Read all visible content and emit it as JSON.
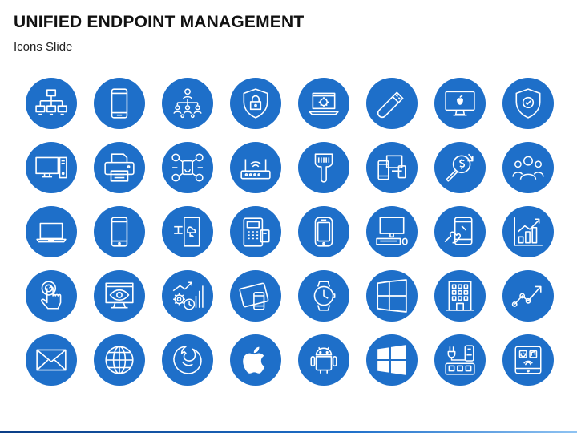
{
  "slide": {
    "title": "UNIFIED ENDPOINT MANAGEMENT",
    "subtitle": "Icons Slide"
  },
  "colors": {
    "icon_circle": "#1e6fc9",
    "icon_stroke": "#ffffff",
    "title_text": "#111111"
  },
  "icon_rows": [
    [
      "network-icon",
      "smartphone-icon",
      "org-hierarchy-icon",
      "security-shield-lock-icon",
      "laptop-settings-icon",
      "usb-drive-icon",
      "imac-apple-icon",
      "verified-shield-icon"
    ],
    [
      "desktop-computer-icon",
      "printer-icon",
      "connected-apps-icon",
      "wifi-router-icon",
      "barcode-scanner-icon",
      "multi-device-icon",
      "cost-analysis-icon",
      "team-icon"
    ],
    [
      "laptop-icon",
      "mobile-phone-icon",
      "cloud-door-icon",
      "payment-terminal-icon",
      "rugged-phone-icon",
      "workstation-icon",
      "touch-screen-icon",
      "growth-chart-icon"
    ],
    [
      "tap-finger-icon",
      "monitoring-eye-icon",
      "performance-gears-icon",
      "tablet-devices-icon",
      "smartwatch-icon",
      "windows-frame-icon",
      "office-building-icon",
      "trend-line-icon"
    ],
    [
      "email-envelope-icon",
      "globe-icon",
      "firefox-icon",
      "apple-logo-icon",
      "android-icon",
      "windows-logo-icon",
      "power-strip-icon",
      "smart-home-tablet-icon"
    ]
  ]
}
